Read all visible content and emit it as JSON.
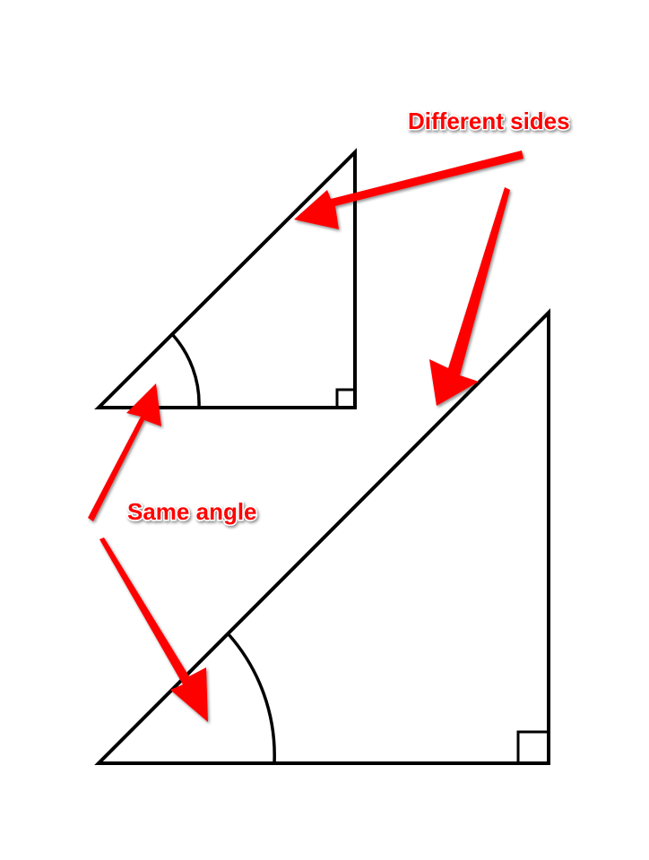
{
  "labels": {
    "different_sides": "Different sides",
    "same_angle": "Same angle"
  },
  "colors": {
    "line": "#000000",
    "annotation": "#ff0000",
    "background": "#ffffff"
  },
  "icons": {
    "arrow": "red-arrow-icon",
    "right_angle": "right-angle-marker-icon",
    "angle_arc": "angle-arc-icon"
  }
}
